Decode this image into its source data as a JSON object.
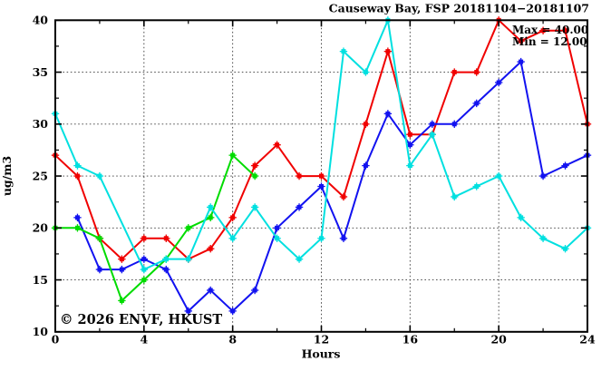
{
  "title": "Causeway Bay, FSP 20181104−20181107",
  "legend": {
    "max_label": "Max = 40.00",
    "min_label": "Min = 12.00"
  },
  "watermark": "© 2026 ENVF, HKUST",
  "colors": {
    "axis": "#000000",
    "grid": "#3c3c3c",
    "watermark": "#c9c9c9",
    "series_red": "#f00000",
    "series_blue": "#1212f0",
    "series_green": "#00dc00",
    "series_cyan": "#00e0e0"
  },
  "chart_data": {
    "type": "line",
    "title": "Causeway Bay, FSP 20181104−20181107",
    "xlabel": "Hours",
    "ylabel": "ug/m3",
    "xlim": [
      0,
      24
    ],
    "ylim": [
      10,
      40
    ],
    "xticks": [
      0,
      4,
      8,
      12,
      16,
      20,
      24
    ],
    "yticks": [
      10,
      15,
      20,
      25,
      30,
      35,
      40
    ],
    "grid": true,
    "connect_gaps": true,
    "legend_position": "top-right",
    "stats": {
      "max": 40.0,
      "min": 12.0
    },
    "x": [
      0,
      1,
      2,
      3,
      4,
      5,
      6,
      7,
      8,
      9,
      10,
      11,
      12,
      13,
      14,
      15,
      16,
      17,
      18,
      19,
      20,
      21,
      22,
      23,
      24
    ],
    "series": [
      {
        "name": "series-1-red",
        "color": "#f00000",
        "values": [
          27,
          25,
          19,
          17,
          19,
          19,
          17,
          18,
          21,
          26,
          28,
          25,
          25,
          23,
          30,
          37,
          29,
          29,
          35,
          35,
          40,
          38,
          39,
          39,
          30
        ]
      },
      {
        "name": "series-2-blue",
        "color": "#1212f0",
        "values": [
          null,
          21,
          16,
          16,
          17,
          16,
          12,
          14,
          12,
          14,
          20,
          22,
          24,
          19,
          26,
          31,
          28,
          30,
          30,
          32,
          34,
          36,
          25,
          26,
          27
        ]
      },
      {
        "name": "series-3-green",
        "color": "#00dc00",
        "values": [
          20,
          20,
          19,
          13,
          15,
          17,
          20,
          21,
          27,
          25,
          null,
          null,
          null,
          null,
          null,
          null,
          null,
          null,
          null,
          null,
          null,
          null,
          null,
          null,
          null
        ]
      },
      {
        "name": "series-4-cyan",
        "color": "#00e0e0",
        "values": [
          31,
          26,
          25,
          null,
          16,
          17,
          17,
          22,
          19,
          22,
          19,
          17,
          19,
          37,
          35,
          40,
          26,
          29,
          23,
          24,
          25,
          21,
          19,
          18,
          20
        ]
      }
    ]
  }
}
